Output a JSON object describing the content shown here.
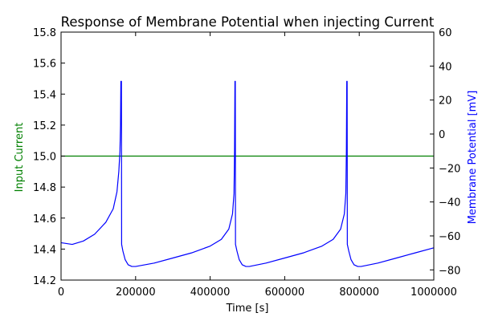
{
  "chart_data": {
    "type": "line",
    "title": "Response of Membrane Potential when injecting Current",
    "xlabel": "Time [s]",
    "ylabel_left": "Input Current",
    "ylabel_right": "Membrane Potential [mV]",
    "xlim": [
      0,
      1000000
    ],
    "ylim_left": [
      14.2,
      15.8
    ],
    "ylim_right": [
      -86,
      60
    ],
    "x_ticks": [
      "0",
      "200000",
      "400000",
      "600000",
      "800000",
      "1000000"
    ],
    "x_tick_values": [
      0,
      200000,
      400000,
      600000,
      800000,
      1000000
    ],
    "y_left_ticks": [
      "14.2",
      "14.4",
      "14.6",
      "14.8",
      "15.0",
      "15.2",
      "15.4",
      "15.6",
      "15.8"
    ],
    "y_left_tick_values": [
      14.2,
      14.4,
      14.6,
      14.8,
      15.0,
      15.2,
      15.4,
      15.6,
      15.8
    ],
    "y_right_ticks": [
      "−80",
      "−60",
      "−40",
      "−20",
      "0",
      "20",
      "40",
      "60"
    ],
    "y_right_tick_values": [
      -80,
      -60,
      -40,
      -20,
      0,
      20,
      40,
      60
    ],
    "grid": false,
    "series": [
      {
        "axis": "left",
        "color": "#008000",
        "x": [
          0,
          1000000
        ],
        "y": [
          15.0,
          15.0
        ]
      },
      {
        "axis": "right",
        "color": "#0000ff",
        "x": [
          0,
          30000,
          60000,
          90000,
          120000,
          140000,
          150000,
          155000,
          158000,
          159500,
          160500,
          162000,
          162500,
          166000,
          172000,
          180000,
          190000,
          200000,
          250000,
          300000,
          350000,
          400000,
          430000,
          450000,
          460000,
          464000,
          465500,
          466500,
          467500,
          468000,
          472000,
          478000,
          486000,
          496000,
          505000,
          550000,
          600000,
          650000,
          700000,
          730000,
          750000,
          760000,
          764000,
          765500,
          766500,
          767500,
          768000,
          772000,
          778000,
          786000,
          796000,
          805000,
          850000,
          900000,
          950000,
          1000000
        ],
        "y": [
          -64,
          -65,
          -63,
          -59,
          -52,
          -44,
          -34,
          -22,
          -10,
          5,
          31,
          31,
          -65,
          -69,
          -74,
          -77,
          -78,
          -78,
          -76,
          -73,
          -70,
          -66,
          -62,
          -56,
          -47,
          -35,
          -10,
          31,
          31,
          -65,
          -69,
          -74,
          -77,
          -78,
          -78,
          -76,
          -73,
          -70,
          -66,
          -62,
          -56,
          -47,
          -35,
          -10,
          31,
          31,
          -65,
          -69,
          -74,
          -77,
          -78,
          -78,
          -76,
          -73,
          -70,
          -67
        ]
      }
    ]
  }
}
